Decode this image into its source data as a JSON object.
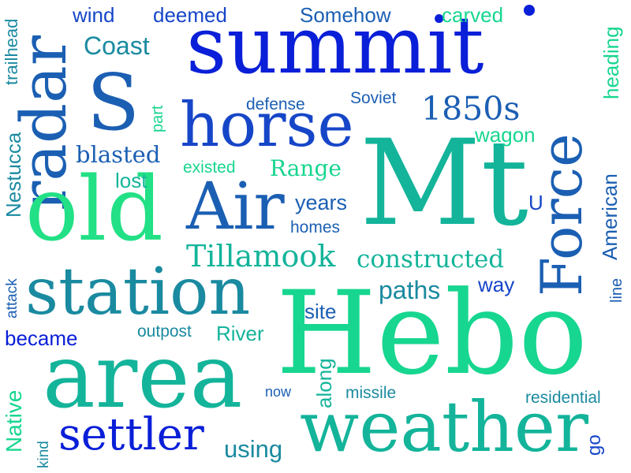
{
  "title": "Word cloud",
  "palette": {
    "background": "#ffffff",
    "blue": "#0a1fd8",
    "royal": "#1646c8",
    "steel": "#1b5fb3",
    "teal": "#1a8aa0",
    "seafoam": "#13b49a",
    "mint": "#17d68f",
    "green": "#22e085"
  },
  "words": {
    "summit": "summit",
    "s": "S",
    "horse": "horse",
    "radar": "radar",
    "mt": "Mt",
    "force": "Force",
    "old": "old",
    "air": "Air",
    "station": "station",
    "hebo": "Hebo",
    "area": "area",
    "weather": "weather",
    "settler": "settler",
    "tillamook": "Tillamook",
    "constructed": "constructed",
    "range": "Range",
    "blasted": "blasted",
    "s1850s": "1850s",
    "wind": "wind",
    "deemed": "deemed",
    "somehow": "Somehow",
    "carved": "carved",
    "coast": "Coast",
    "trailhead": "trailhead",
    "heading": "heading",
    "defense": "defense",
    "soviet": "Soviet",
    "part": "part",
    "wagon": "wagon",
    "existed": "existed",
    "lost": "lost",
    "nestucca": "Nestucca",
    "years": "years",
    "homes": "homes",
    "u": "U",
    "american": "American",
    "paths": "paths",
    "way": "way",
    "line": "line",
    "attack": "attack",
    "site": "site",
    "outpost": "outpost",
    "river": "River",
    "became": "became",
    "native": "Native",
    "now": "now",
    "along": "along",
    "missile": "missile",
    "residential": "residential",
    "kind": "kind",
    "using": "using",
    "go": "go"
  }
}
